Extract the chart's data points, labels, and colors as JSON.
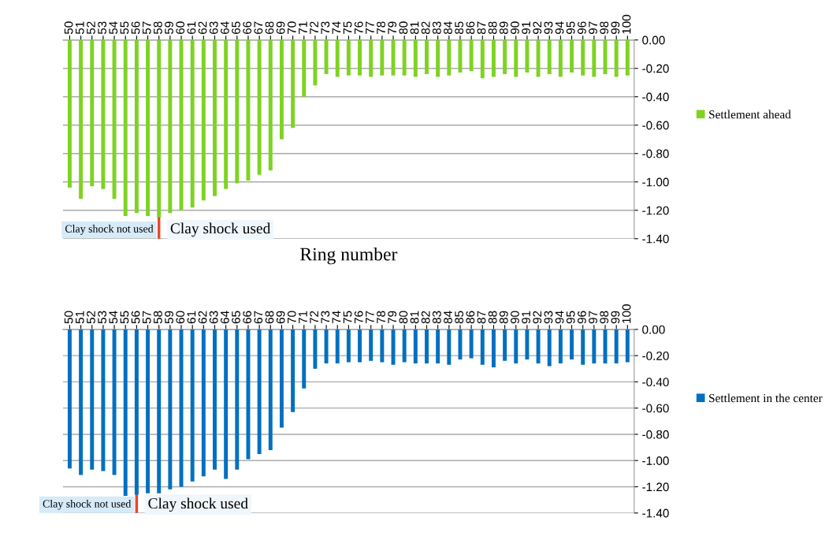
{
  "chart_data": [
    {
      "type": "bar",
      "xlabel": "Ring number",
      "categories": [
        "50",
        "51",
        "52",
        "53",
        "54",
        "55",
        "56",
        "57",
        "58",
        "59",
        "60",
        "61",
        "62",
        "63",
        "64",
        "65",
        "66",
        "67",
        "68",
        "69",
        "70",
        "71",
        "72",
        "73",
        "74",
        "75",
        "76",
        "77",
        "78",
        "79",
        "80",
        "81",
        "82",
        "83",
        "84",
        "85",
        "86",
        "87",
        "88",
        "89",
        "90",
        "91",
        "92",
        "93",
        "94",
        "95",
        "96",
        "97",
        "98",
        "99",
        "100"
      ],
      "series": [
        {
          "name": "Settlement ahead",
          "color": "#7ed321",
          "values": [
            -1.04,
            -1.12,
            -1.03,
            -1.05,
            -1.12,
            -1.24,
            -1.22,
            -1.24,
            -1.25,
            -1.22,
            -1.2,
            -1.18,
            -1.13,
            -1.1,
            -1.05,
            -1.01,
            -0.99,
            -0.95,
            -0.92,
            -0.7,
            -0.62,
            -0.4,
            -0.32,
            -0.24,
            -0.26,
            -0.25,
            -0.25,
            -0.26,
            -0.25,
            -0.25,
            -0.25,
            -0.26,
            -0.24,
            -0.26,
            -0.25,
            -0.23,
            -0.22,
            -0.27,
            -0.26,
            -0.24,
            -0.26,
            -0.23,
            -0.26,
            -0.24,
            -0.26,
            -0.23,
            -0.25,
            -0.26,
            -0.24,
            -0.26,
            -0.25
          ]
        }
      ],
      "ylim": [
        -1.4,
        0
      ],
      "yticks": [
        {
          "value": 0,
          "label": "0.00"
        },
        {
          "value": -0.2,
          "label": "-0.20"
        },
        {
          "value": -0.4,
          "label": "-0.40"
        },
        {
          "value": -0.6,
          "label": "-0.60"
        },
        {
          "value": -0.8,
          "label": "-0.80"
        },
        {
          "value": -1.0,
          "label": "-1.00"
        },
        {
          "value": -1.2,
          "label": "-1.20"
        },
        {
          "value": -1.4,
          "label": "-1.40"
        }
      ],
      "grid": "y",
      "legend": "right",
      "ref_lines": [
        {
          "axis": "x",
          "value": "58",
          "color": "#e8472c"
        }
      ],
      "annotations": [
        "Clay shock not used",
        "Clay shock used"
      ]
    },
    {
      "type": "bar",
      "categories": [
        "50",
        "51",
        "52",
        "53",
        "54",
        "55",
        "56",
        "57",
        "58",
        "59",
        "60",
        "61",
        "62",
        "63",
        "64",
        "65",
        "66",
        "67",
        "68",
        "69",
        "70",
        "71",
        "72",
        "73",
        "74",
        "75",
        "76",
        "77",
        "78",
        "79",
        "80",
        "81",
        "82",
        "83",
        "84",
        "85",
        "86",
        "87",
        "88",
        "89",
        "90",
        "91",
        "92",
        "93",
        "94",
        "95",
        "96",
        "97",
        "98",
        "99",
        "100"
      ],
      "series": [
        {
          "name": "Settlement in the center",
          "color": "#0070c0",
          "values": [
            -1.06,
            -1.11,
            -1.07,
            -1.08,
            -1.11,
            -1.27,
            -1.26,
            -1.25,
            -1.25,
            -1.22,
            -1.2,
            -1.16,
            -1.12,
            -1.07,
            -1.14,
            -1.07,
            -0.99,
            -0.95,
            -0.92,
            -0.75,
            -0.63,
            -0.45,
            -0.3,
            -0.26,
            -0.26,
            -0.25,
            -0.25,
            -0.24,
            -0.25,
            -0.27,
            -0.25,
            -0.26,
            -0.26,
            -0.26,
            -0.27,
            -0.23,
            -0.22,
            -0.27,
            -0.29,
            -0.24,
            -0.26,
            -0.23,
            -0.26,
            -0.28,
            -0.26,
            -0.23,
            -0.27,
            -0.26,
            -0.26,
            -0.26,
            -0.25
          ]
        }
      ],
      "ylim": [
        -1.4,
        0
      ],
      "yticks": [
        {
          "value": 0,
          "label": "0.00"
        },
        {
          "value": -0.2,
          "label": "-0.20"
        },
        {
          "value": -0.4,
          "label": "-0.40"
        },
        {
          "value": -0.6,
          "label": "-0.60"
        },
        {
          "value": -0.8,
          "label": "-0.80"
        },
        {
          "value": -1.0,
          "label": "-1.00"
        },
        {
          "value": -1.2,
          "label": "-1.20"
        },
        {
          "value": -1.4,
          "label": "-1.40"
        }
      ],
      "grid": "y",
      "legend": "right",
      "ref_lines": [
        {
          "axis": "x",
          "value": "56",
          "color": "#e8472c"
        }
      ],
      "annotations": [
        "Clay shock not used",
        "Clay shock used"
      ]
    }
  ]
}
